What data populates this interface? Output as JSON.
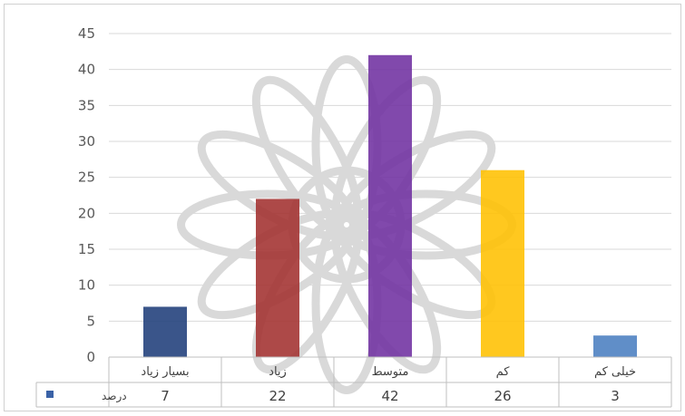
{
  "chart_data": {
    "type": "bar",
    "categories": [
      "بسیار زیاد",
      "زیاد",
      "متوسط",
      "کم",
      "خیلی کم"
    ],
    "series": [
      {
        "name": "درصد",
        "values": [
          7,
          22,
          42,
          26,
          3
        ]
      }
    ],
    "bar_colors": [
      "#1F3D7A",
      "#A2302F",
      "#7030A0",
      "#FFC000",
      "#4A7EC0"
    ],
    "ylim": [
      0,
      45
    ],
    "yticks": [
      0,
      5,
      10,
      15,
      20,
      25,
      30,
      35,
      40,
      45
    ],
    "grid": true,
    "data_table": true,
    "legend_marker_color": "#3A62A7"
  }
}
